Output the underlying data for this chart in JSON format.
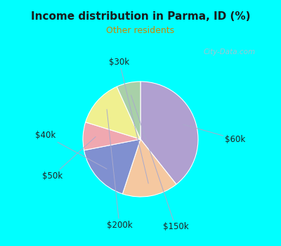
{
  "title": "Income distribution in Parma, ID (%)",
  "subtitle": "Other residents",
  "title_color": "#1a1a1a",
  "subtitle_color": "#cc8800",
  "background_outer": "#00ffff",
  "watermark": "City-Data.com",
  "labels": [
    "$60k",
    "$30k",
    "$40k",
    "$50k",
    "$200k",
    "$150k"
  ],
  "sizes": [
    35,
    14,
    15,
    7,
    12,
    6
  ],
  "colors": [
    "#b0a0d0",
    "#f5c8a0",
    "#8090d0",
    "#f0a8b0",
    "#f0f090",
    "#a8d0a8"
  ],
  "startangle": 90,
  "label_fontsize": 8.5,
  "wedge_linewidth": 0.8,
  "wedge_edgecolor": "#ffffff",
  "label_color": "#222222"
}
